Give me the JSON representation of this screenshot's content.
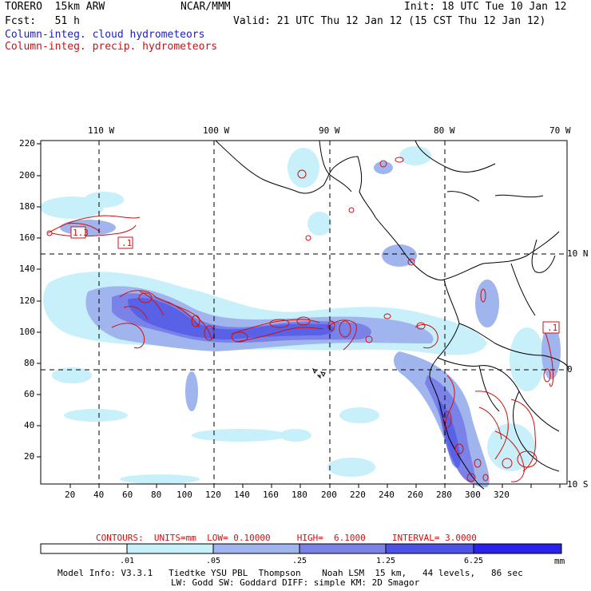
{
  "header": {
    "model": "TORERO  15km ARW",
    "org": "NCAR/MMM",
    "init": "Init: 18 UTC Tue 10 Jan 12",
    "fcst": "Fcst:   51 h",
    "valid": "Valid: 21 UTC Thu 12 Jan 12 (15 CST Thu 12 Jan 12)",
    "legend_cloud": "Column-integ. cloud hydrometeors",
    "legend_precip": "Column-integ. precip. hydrometeors"
  },
  "axes": {
    "lon_labels": [
      "110 W",
      "100 W",
      "90 W",
      "80 W",
      "70 W"
    ],
    "lat_labels": [
      "10 N",
      "0",
      "10 S"
    ],
    "x_ticks": [
      "20",
      "40",
      "60",
      "80",
      "100",
      "120",
      "140",
      "160",
      "180",
      "200",
      "220",
      "240",
      "260",
      "280",
      "300",
      "320"
    ],
    "y_ticks": [
      "220",
      "200",
      "180",
      "160",
      "140",
      "120",
      "100",
      "80",
      "60",
      "40",
      "20"
    ]
  },
  "annotations": {
    "box_left_1": "1.3",
    "box_left_2": ".1",
    "box_right": ".1"
  },
  "contour_info": {
    "label": "CONTOURS:",
    "units": "UNITS=mm",
    "low": "LOW= 0.10000",
    "high": "HIGH=  6.1000",
    "interval": "INTERVAL= 3.0000"
  },
  "colorbar": {
    "labels": [
      ".01",
      ".05",
      ".25",
      "1.25",
      "6.25"
    ],
    "unit": "mm",
    "colors": [
      "#ffffff",
      "#c8f0fa",
      "#a0b4ee",
      "#7a82e8",
      "#4c52e6",
      "#2a22ec"
    ]
  },
  "footer": {
    "line1": "Model Info: V3.3.1   Tiedtke YSU PBL  Thompson    Noah LSM  15 km,   44 levels,   86 sec",
    "line2": "LW: Godd SW: Goddard DIFF: simple KM: 2D Smagor"
  },
  "colors": {
    "cloud": "#2020c0",
    "precip": "#d01010",
    "land": "#000000"
  }
}
